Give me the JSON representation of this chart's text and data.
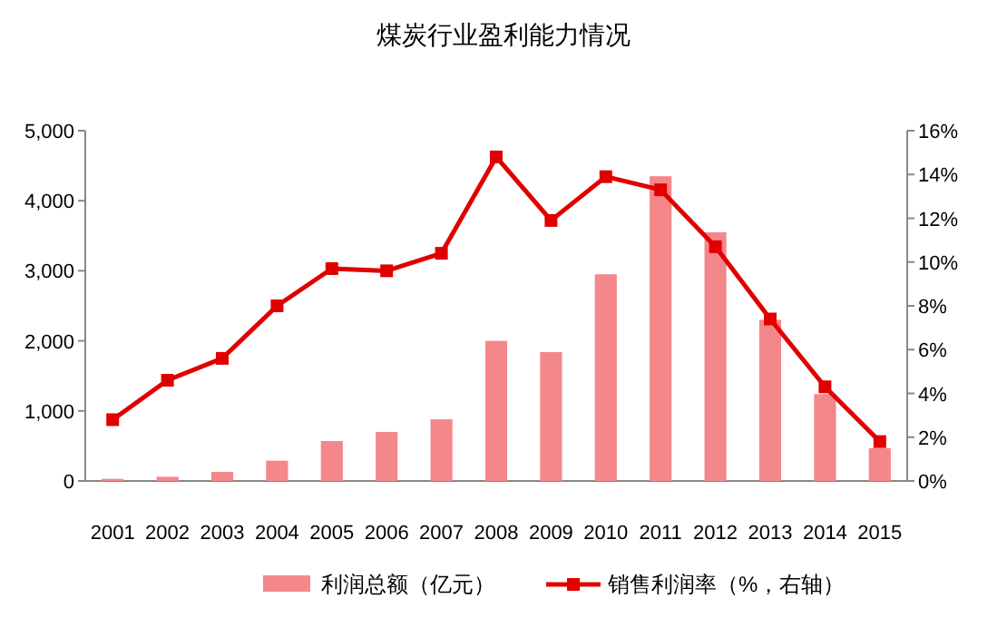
{
  "chart_data": {
    "type": "bar",
    "title": "煤炭行业盈利能力情况",
    "categories": [
      "2001",
      "2002",
      "2003",
      "2004",
      "2005",
      "2006",
      "2007",
      "2008",
      "2009",
      "2010",
      "2011",
      "2012",
      "2013",
      "2014",
      "2015"
    ],
    "series": [
      {
        "name": "利润总额（亿元）",
        "color": "#f4878a",
        "values": [
          30,
          60,
          130,
          290,
          570,
          700,
          880,
          2000,
          1840,
          2950,
          4350,
          3550,
          2300,
          1240,
          470
        ]
      },
      {
        "name": "销售利润率（%，右轴）",
        "type": "line",
        "axis": "y2",
        "color": "#e00000",
        "values": [
          2.8,
          4.6,
          5.6,
          8.0,
          9.7,
          9.6,
          10.4,
          14.8,
          11.9,
          13.9,
          13.3,
          10.7,
          7.4,
          4.3,
          1.8
        ]
      }
    ],
    "ylim": [
      0,
      5000
    ],
    "yticks": [
      {
        "value": 0,
        "label": "0"
      },
      {
        "value": 1000,
        "label": "1,000"
      },
      {
        "value": 2000,
        "label": "2,000"
      },
      {
        "value": 3000,
        "label": "3,000"
      },
      {
        "value": 4000,
        "label": "4,000"
      },
      {
        "value": 5000,
        "label": "5,000"
      }
    ],
    "y2lim": [
      0,
      16
    ],
    "y2ticks": [
      {
        "value": 0,
        "label": "0%"
      },
      {
        "value": 2,
        "label": "2%"
      },
      {
        "value": 4,
        "label": "4%"
      },
      {
        "value": 6,
        "label": "6%"
      },
      {
        "value": 8,
        "label": "8%"
      },
      {
        "value": 10,
        "label": "10%"
      },
      {
        "value": 12,
        "label": "12%"
      },
      {
        "value": 14,
        "label": "14%"
      },
      {
        "value": 16,
        "label": "16%"
      }
    ],
    "legend": "bottom",
    "grid": false,
    "marker": "square",
    "line_style": "solid"
  }
}
